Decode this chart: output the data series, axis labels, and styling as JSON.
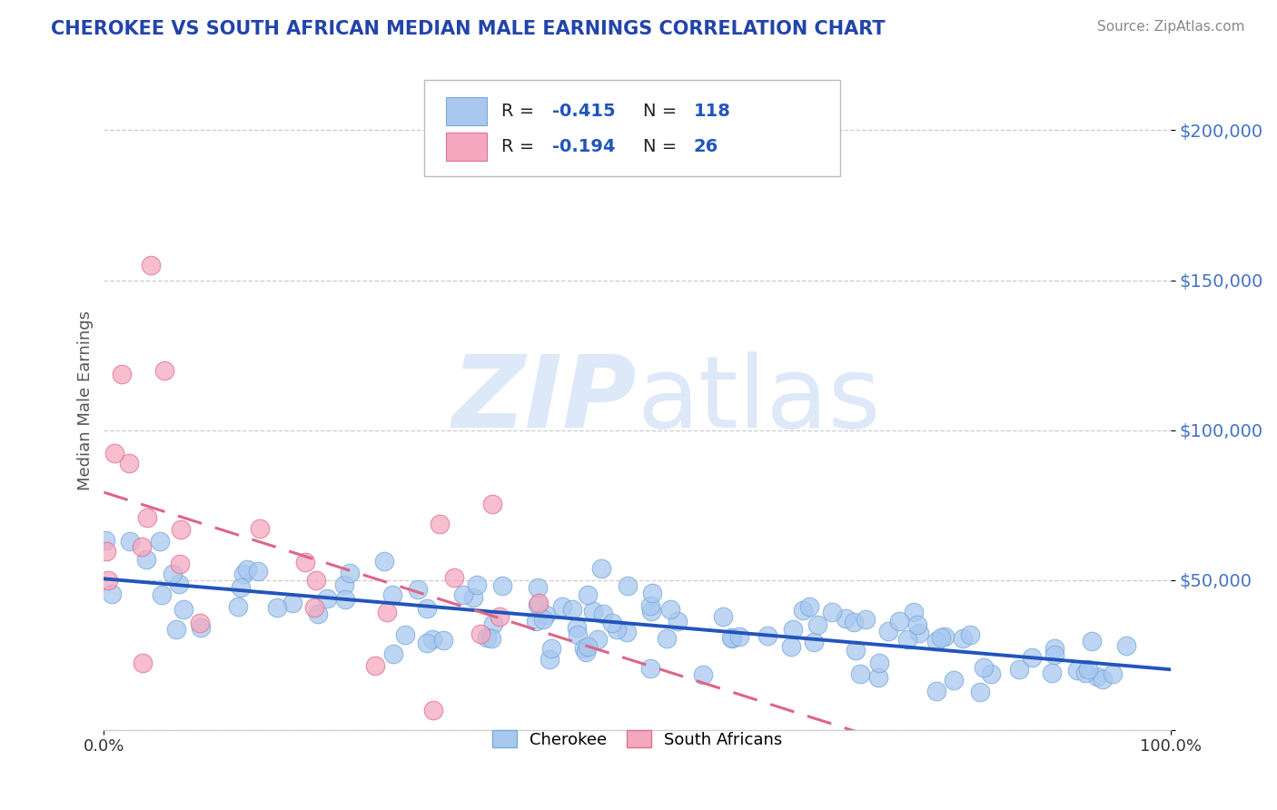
{
  "title": "CHEROKEE VS SOUTH AFRICAN MEDIAN MALE EARNINGS CORRELATION CHART",
  "source": "Source: ZipAtlas.com",
  "ylabel": "Median Male Earnings",
  "xlim": [
    0.0,
    1.0
  ],
  "ylim": [
    0,
    220000
  ],
  "ytick_values": [
    0,
    50000,
    100000,
    150000,
    200000
  ],
  "ytick_labels": [
    "",
    "$50,000",
    "$100,000",
    "$150,000",
    "$200,000"
  ],
  "grid_color": "#cccccc",
  "background_color": "#ffffff",
  "cherokee_color": "#a8c8f0",
  "cherokee_edge": "#7aaad8",
  "sa_color": "#f4a8c0",
  "sa_edge": "#e07090",
  "cherokee_line_color": "#2255bb",
  "sa_line_color": "#dd6688",
  "R_cherokee": -0.415,
  "N_cherokee": 118,
  "R_sa": -0.194,
  "N_sa": 26,
  "legend_label_cherokee": "Cherokee",
  "legend_label_sa": "South Africans",
  "title_color": "#2244aa",
  "source_color": "#888888",
  "axis_label_color": "#555555",
  "tick_color": "#4472c4",
  "watermark_color": "#dde8f8"
}
